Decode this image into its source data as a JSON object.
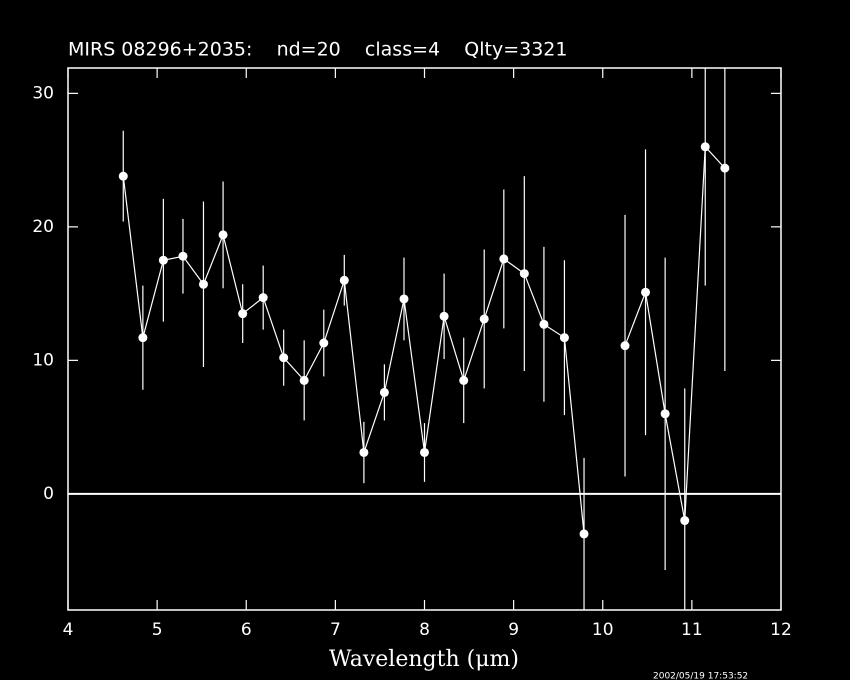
{
  "chart_data": {
    "type": "errorbar",
    "title": "MIRS 08296+2035:    nd=20    class=4    Qlty=3321",
    "x_label": "Wavelength (μm)",
    "timestamp": "2002/05/19 17:53:52",
    "color": "#ffffff",
    "hline": 0,
    "xlim": [
      4,
      12
    ],
    "ylim": [
      -8.7,
      31.9
    ],
    "xticks": [
      4,
      5,
      6,
      7,
      8,
      9,
      10,
      11,
      12
    ],
    "yticks": [
      0,
      10,
      20,
      30
    ],
    "x": [
      4.62,
      4.84,
      5.07,
      5.29,
      5.52,
      5.74,
      5.96,
      6.19,
      6.42,
      6.65,
      6.87,
      7.1,
      7.32,
      7.55,
      7.77,
      8.0,
      8.22,
      8.44,
      8.67,
      8.89,
      9.12,
      9.34,
      9.57,
      9.79,
      10.02,
      10.25,
      10.48,
      10.7,
      10.92,
      11.15,
      11.37
    ],
    "values": [
      23.8,
      11.7,
      17.5,
      17.8,
      15.7,
      19.4,
      13.5,
      14.7,
      10.2,
      8.5,
      11.3,
      16.0,
      3.1,
      7.6,
      14.6,
      3.1,
      13.3,
      8.5,
      13.1,
      17.6,
      16.5,
      12.7,
      11.7,
      -3.0,
      null,
      11.1,
      15.1,
      6.0,
      -2.0,
      26.0,
      24.4
    ],
    "errors": [
      3.4,
      3.9,
      4.6,
      2.8,
      6.2,
      4.0,
      2.2,
      2.4,
      2.1,
      3.0,
      2.5,
      1.9,
      2.3,
      2.1,
      3.1,
      2.2,
      3.2,
      3.2,
      5.2,
      5.2,
      7.3,
      5.8,
      5.8,
      5.7,
      null,
      9.8,
      10.7,
      11.7,
      9.9,
      10.4,
      15.2
    ]
  }
}
